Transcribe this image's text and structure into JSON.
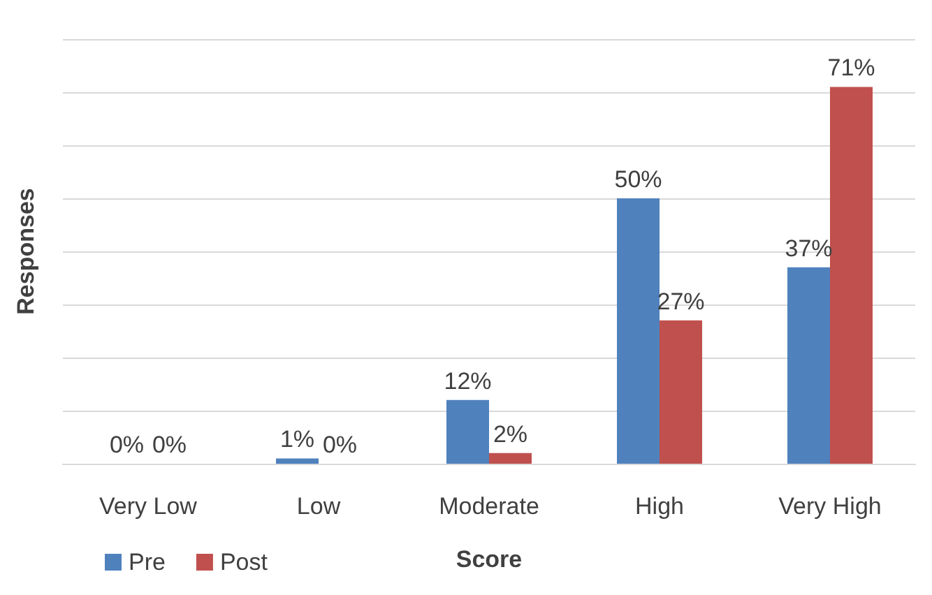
{
  "chart_data": {
    "type": "bar",
    "xlabel": "Score",
    "ylabel": "Responses",
    "categories": [
      "Very Low",
      "Low",
      "Moderate",
      "High",
      "Very High"
    ],
    "series": [
      {
        "name": "Pre",
        "color": "#4f81bd",
        "values": [
          0,
          1,
          12,
          50,
          37
        ],
        "value_labels": [
          "0%",
          "1%",
          "12%",
          "50%",
          "37%"
        ]
      },
      {
        "name": "Post",
        "color": "#c0504d",
        "values": [
          0,
          0,
          2,
          27,
          71
        ],
        "value_labels": [
          "0%",
          "0%",
          "2%",
          "27%",
          "71%"
        ]
      }
    ],
    "ylim": [
      0,
      80
    ],
    "yticks": [
      {
        "value": 0,
        "label": null
      },
      {
        "value": 10,
        "label": null
      },
      {
        "value": 20,
        "label": null
      },
      {
        "value": 30,
        "label": null
      },
      {
        "value": 40,
        "label": null
      },
      {
        "value": 50,
        "label": null
      },
      {
        "value": 60,
        "label": null
      },
      {
        "value": 70,
        "label": null
      },
      {
        "value": 80,
        "label": null
      }
    ],
    "grid": "y",
    "legend": "bottom left",
    "tick_labels": "x"
  }
}
